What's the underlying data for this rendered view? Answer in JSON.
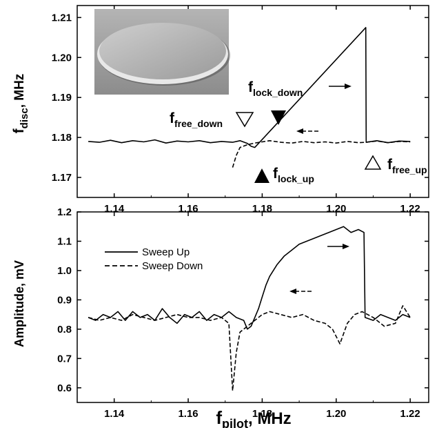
{
  "chart_data": [
    {
      "type": "line",
      "panel": "top",
      "xlim": [
        1.13,
        1.225
      ],
      "ylim": [
        1.165,
        1.213
      ],
      "xticks": [
        "1.14",
        "1.16",
        "1.18",
        "1.20",
        "1.22"
      ],
      "xtick_values": [
        1.14,
        1.16,
        1.18,
        1.2,
        1.22
      ],
      "yticks": [
        "1.17",
        "1.18",
        "1.19",
        "1.20",
        "1.21"
      ],
      "ytick_values": [
        1.17,
        1.18,
        1.19,
        1.2,
        1.21
      ],
      "ylabel_main": "f",
      "ylabel_sub": "disc",
      "ylabel_suffix": ", MHz",
      "series": [
        {
          "style": "solid",
          "x": [
            1.133,
            1.136,
            1.139,
            1.142,
            1.145,
            1.148,
            1.151,
            1.154,
            1.157,
            1.16,
            1.163,
            1.166,
            1.169,
            1.172,
            1.174,
            1.176,
            1.177,
            1.178,
            1.208,
            1.2081,
            1.211,
            1.214,
            1.217,
            1.22
          ],
          "y": [
            1.179,
            1.1788,
            1.1793,
            1.1787,
            1.1792,
            1.1789,
            1.1794,
            1.1786,
            1.1791,
            1.1789,
            1.1792,
            1.1787,
            1.179,
            1.1788,
            1.1792,
            1.1785,
            1.1778,
            1.1775,
            1.2075,
            1.1788,
            1.1792,
            1.1787,
            1.1791,
            1.179
          ]
        },
        {
          "style": "dashed",
          "x": [
            1.172,
            1.173,
            1.174,
            1.176,
            1.178,
            1.18,
            1.182,
            1.185,
            1.188,
            1.191,
            1.194,
            1.197,
            1.2,
            1.203,
            1.206,
            1.208,
            1.211,
            1.214,
            1.217,
            1.22
          ],
          "y": [
            1.1725,
            1.1755,
            1.1775,
            1.1782,
            1.1786,
            1.1789,
            1.1792,
            1.1788,
            1.1786,
            1.179,
            1.1787,
            1.1789,
            1.1786,
            1.179,
            1.1787,
            1.1788,
            1.1791,
            1.1787,
            1.179,
            1.1789
          ]
        }
      ],
      "annotations": {
        "free_down": {
          "main": "f",
          "sub": "free_down"
        },
        "lock_down": {
          "main": "f",
          "sub": "lock_down"
        },
        "lock_up": {
          "main": "f",
          "sub": "lock_up"
        },
        "free_up": {
          "main": "f",
          "sub": "free_up"
        }
      },
      "inset": "photo-of-disc-resonator"
    },
    {
      "type": "line",
      "panel": "bottom",
      "xlim": [
        1.13,
        1.225
      ],
      "ylim": [
        0.55,
        1.2
      ],
      "xticks": [
        "1.14",
        "1.16",
        "1.18",
        "1.20",
        "1.22"
      ],
      "xtick_values": [
        1.14,
        1.16,
        1.18,
        1.2,
        1.22
      ],
      "yticks": [
        "0.6",
        "0.7",
        "0.8",
        "0.9",
        "1.0",
        "1.1",
        "1.2"
      ],
      "ytick_values": [
        0.6,
        0.7,
        0.8,
        0.9,
        1.0,
        1.1,
        1.2
      ],
      "ylabel": "Amplitude, mV",
      "xlabel_main": "f",
      "xlabel_sub": "pilot",
      "xlabel_suffix": ", MHz",
      "series": [
        {
          "name": "Sweep Up",
          "style": "solid",
          "x": [
            1.133,
            1.135,
            1.137,
            1.139,
            1.141,
            1.143,
            1.145,
            1.147,
            1.149,
            1.151,
            1.153,
            1.155,
            1.157,
            1.159,
            1.161,
            1.163,
            1.165,
            1.167,
            1.169,
            1.171,
            1.173,
            1.175,
            1.176,
            1.177,
            1.178,
            1.179,
            1.18,
            1.181,
            1.182,
            1.184,
            1.186,
            1.188,
            1.19,
            1.192,
            1.194,
            1.196,
            1.198,
            1.2,
            1.202,
            1.204,
            1.206,
            1.2075,
            1.2078,
            1.21,
            1.212,
            1.214,
            1.216,
            1.218,
            1.22
          ],
          "y": [
            0.84,
            0.83,
            0.85,
            0.84,
            0.86,
            0.83,
            0.86,
            0.84,
            0.85,
            0.83,
            0.87,
            0.84,
            0.82,
            0.85,
            0.84,
            0.86,
            0.83,
            0.85,
            0.84,
            0.86,
            0.84,
            0.83,
            0.8,
            0.81,
            0.84,
            0.87,
            0.91,
            0.95,
            0.98,
            1.02,
            1.05,
            1.07,
            1.09,
            1.1,
            1.11,
            1.12,
            1.13,
            1.14,
            1.15,
            1.13,
            1.14,
            1.13,
            0.84,
            0.83,
            0.85,
            0.84,
            0.83,
            0.85,
            0.84
          ]
        },
        {
          "name": "Sweep Down",
          "style": "dashed",
          "x": [
            1.133,
            1.136,
            1.139,
            1.142,
            1.145,
            1.148,
            1.151,
            1.154,
            1.157,
            1.16,
            1.163,
            1.166,
            1.169,
            1.171,
            1.172,
            1.173,
            1.174,
            1.176,
            1.178,
            1.18,
            1.182,
            1.185,
            1.188,
            1.191,
            1.194,
            1.197,
            1.199,
            1.201,
            1.203,
            1.205,
            1.207,
            1.21,
            1.213,
            1.216,
            1.218,
            1.22
          ],
          "y": [
            0.84,
            0.83,
            0.84,
            0.83,
            0.85,
            0.84,
            0.83,
            0.84,
            0.85,
            0.84,
            0.84,
            0.83,
            0.84,
            0.82,
            0.59,
            0.72,
            0.79,
            0.81,
            0.83,
            0.85,
            0.86,
            0.85,
            0.84,
            0.85,
            0.83,
            0.82,
            0.8,
            0.75,
            0.82,
            0.85,
            0.86,
            0.84,
            0.81,
            0.82,
            0.88,
            0.84
          ]
        }
      ],
      "legend_position": "top-left"
    }
  ]
}
